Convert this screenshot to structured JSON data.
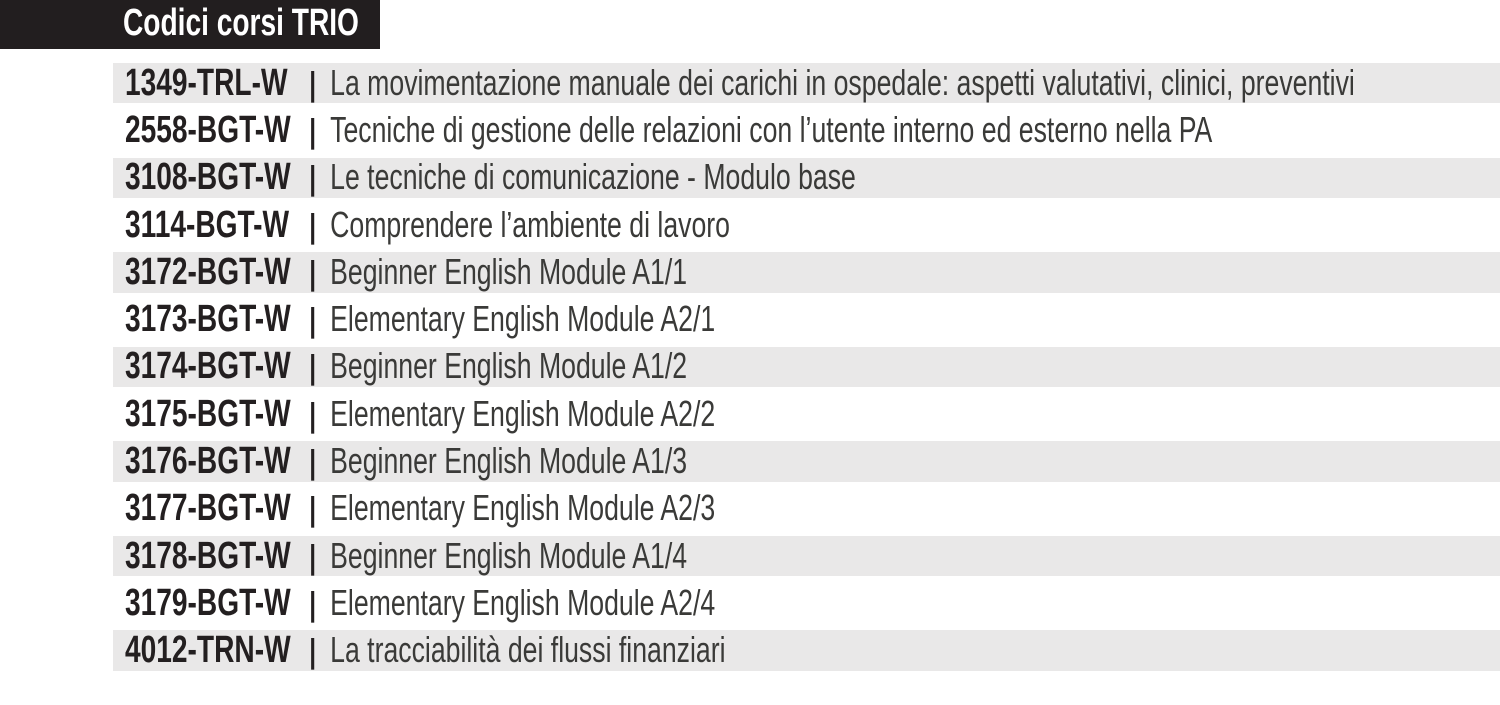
{
  "header": {
    "title": "Codici corsi TRIO"
  },
  "separator": "|",
  "courses": [
    {
      "code": "1349-TRL-W",
      "title": "La movimentazione manuale dei carichi in ospedale: aspetti valutativi, clinici, preventivi"
    },
    {
      "code": "2558-BGT-W",
      "title": "Tecniche di gestione delle relazioni con l’utente interno ed esterno nella PA"
    },
    {
      "code": "3108-BGT-W",
      "title": "Le tecniche di comunicazione - Modulo base"
    },
    {
      "code": "3114-BGT-W",
      "title": "Comprendere l’ambiente di lavoro"
    },
    {
      "code": "3172-BGT-W",
      "title": "Beginner English Module A1/1"
    },
    {
      "code": "3173-BGT-W",
      "title": "Elementary English Module A2/1"
    },
    {
      "code": "3174-BGT-W",
      "title": "Beginner English Module A1/2"
    },
    {
      "code": "3175-BGT-W",
      "title": "Elementary English Module A2/2"
    },
    {
      "code": "3176-BGT-W",
      "title": "Beginner English Module A1/3"
    },
    {
      "code": "3177-BGT-W",
      "title": "Elementary English Module A2/3"
    },
    {
      "code": "3178-BGT-W",
      "title": "Beginner English Module A1/4"
    },
    {
      "code": "3179-BGT-W",
      "title": "Elementary English Module A2/4"
    },
    {
      "code": "4012-TRN-W",
      "title": "La tracciabilità dei flussi finanziari"
    }
  ],
  "colors": {
    "page_bg": "#ffffff",
    "header_bg": "#221e1f",
    "header_text": "#ffffff",
    "row_shade": "#e9e8e8",
    "code_text": "#231f20",
    "title_text": "#3a3a38"
  }
}
